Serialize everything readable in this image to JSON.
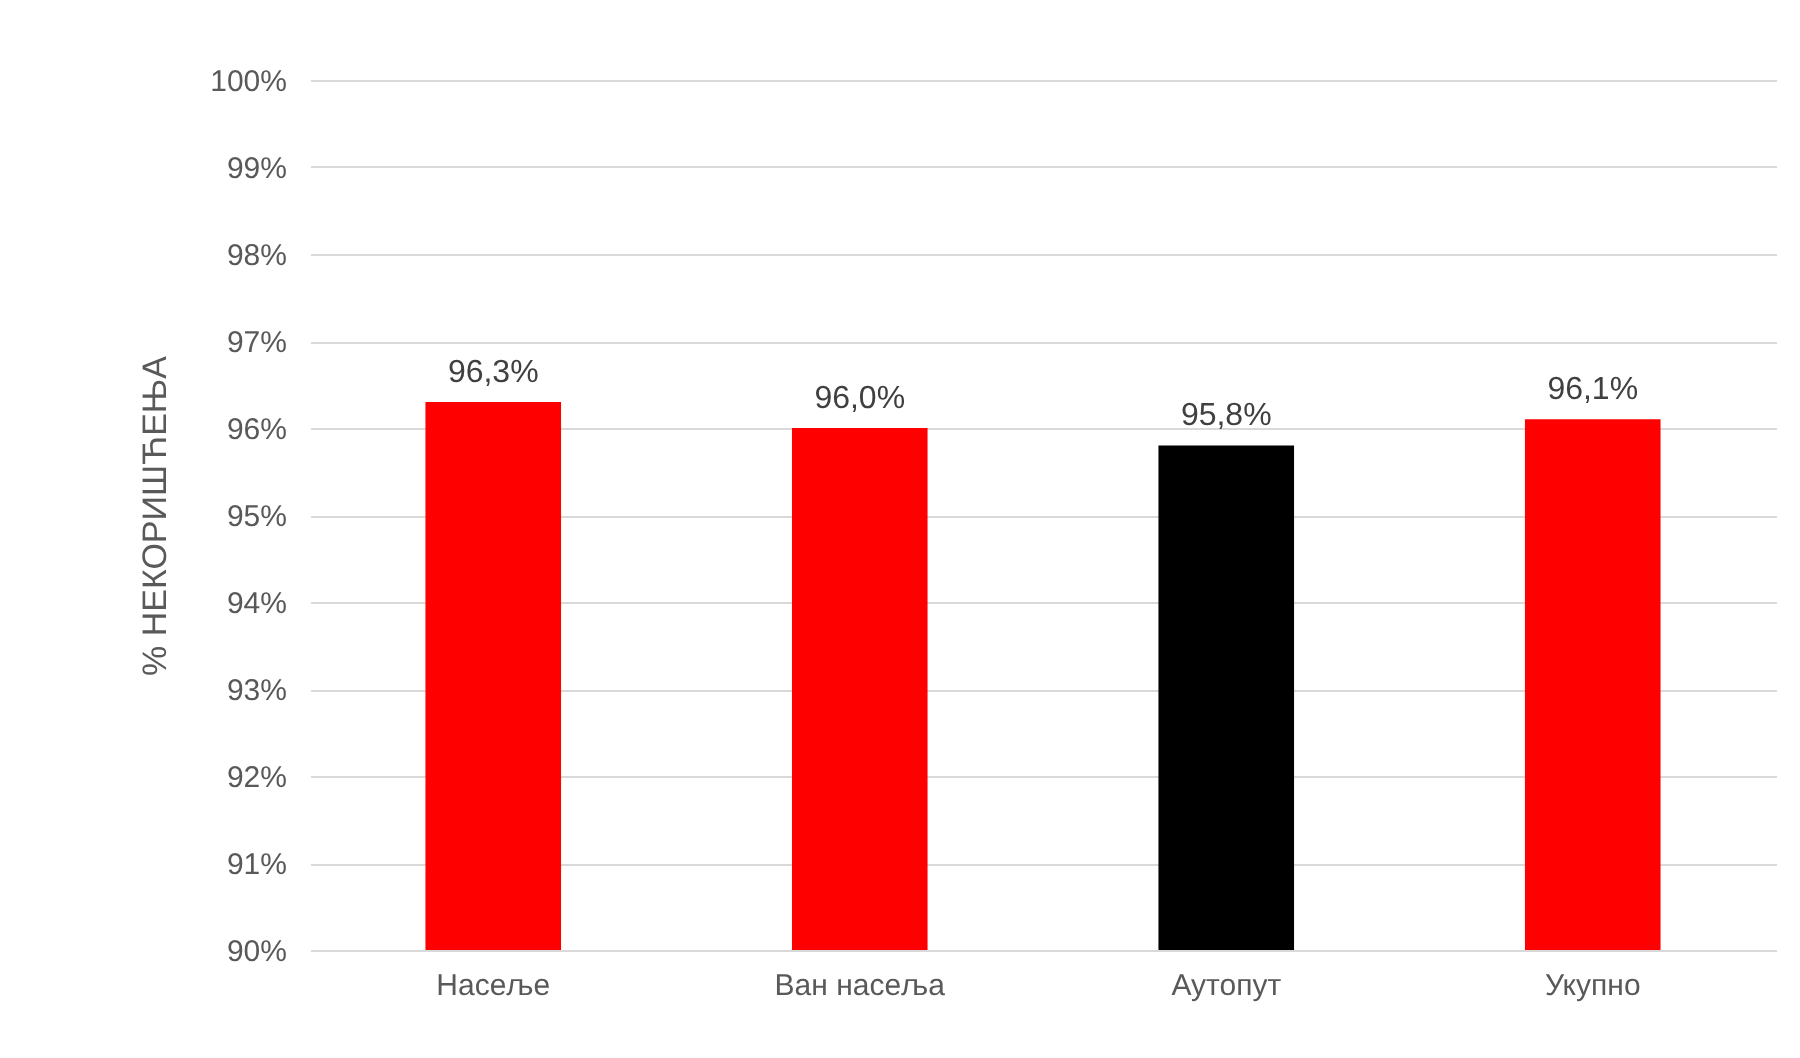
{
  "chart_data": {
    "type": "bar",
    "ylabel": "% НЕКОРИШЋЕЊА",
    "categories": [
      "Насеље",
      "Ван насеља",
      "Аутопут",
      "Укупно"
    ],
    "values": [
      96.3,
      96.0,
      95.8,
      96.1
    ],
    "colors": [
      "#ff0000",
      "#ff0000",
      "#000000",
      "#ff0000"
    ],
    "value_labels": [
      "96,3%",
      "96,0%",
      "95,8%",
      "96,1%"
    ],
    "ylim": [
      90,
      100
    ],
    "yticks": [
      {
        "value": 90,
        "label": "90%"
      },
      {
        "value": 91,
        "label": "91%"
      },
      {
        "value": 92,
        "label": "92%"
      },
      {
        "value": 93,
        "label": "93%"
      },
      {
        "value": 94,
        "label": "94%"
      },
      {
        "value": 95,
        "label": "95%"
      },
      {
        "value": 96,
        "label": "96%"
      },
      {
        "value": 97,
        "label": "97%"
      },
      {
        "value": 98,
        "label": "98%"
      },
      {
        "value": 99,
        "label": "99%"
      },
      {
        "value": 100,
        "label": "100%"
      }
    ],
    "grid": true
  }
}
